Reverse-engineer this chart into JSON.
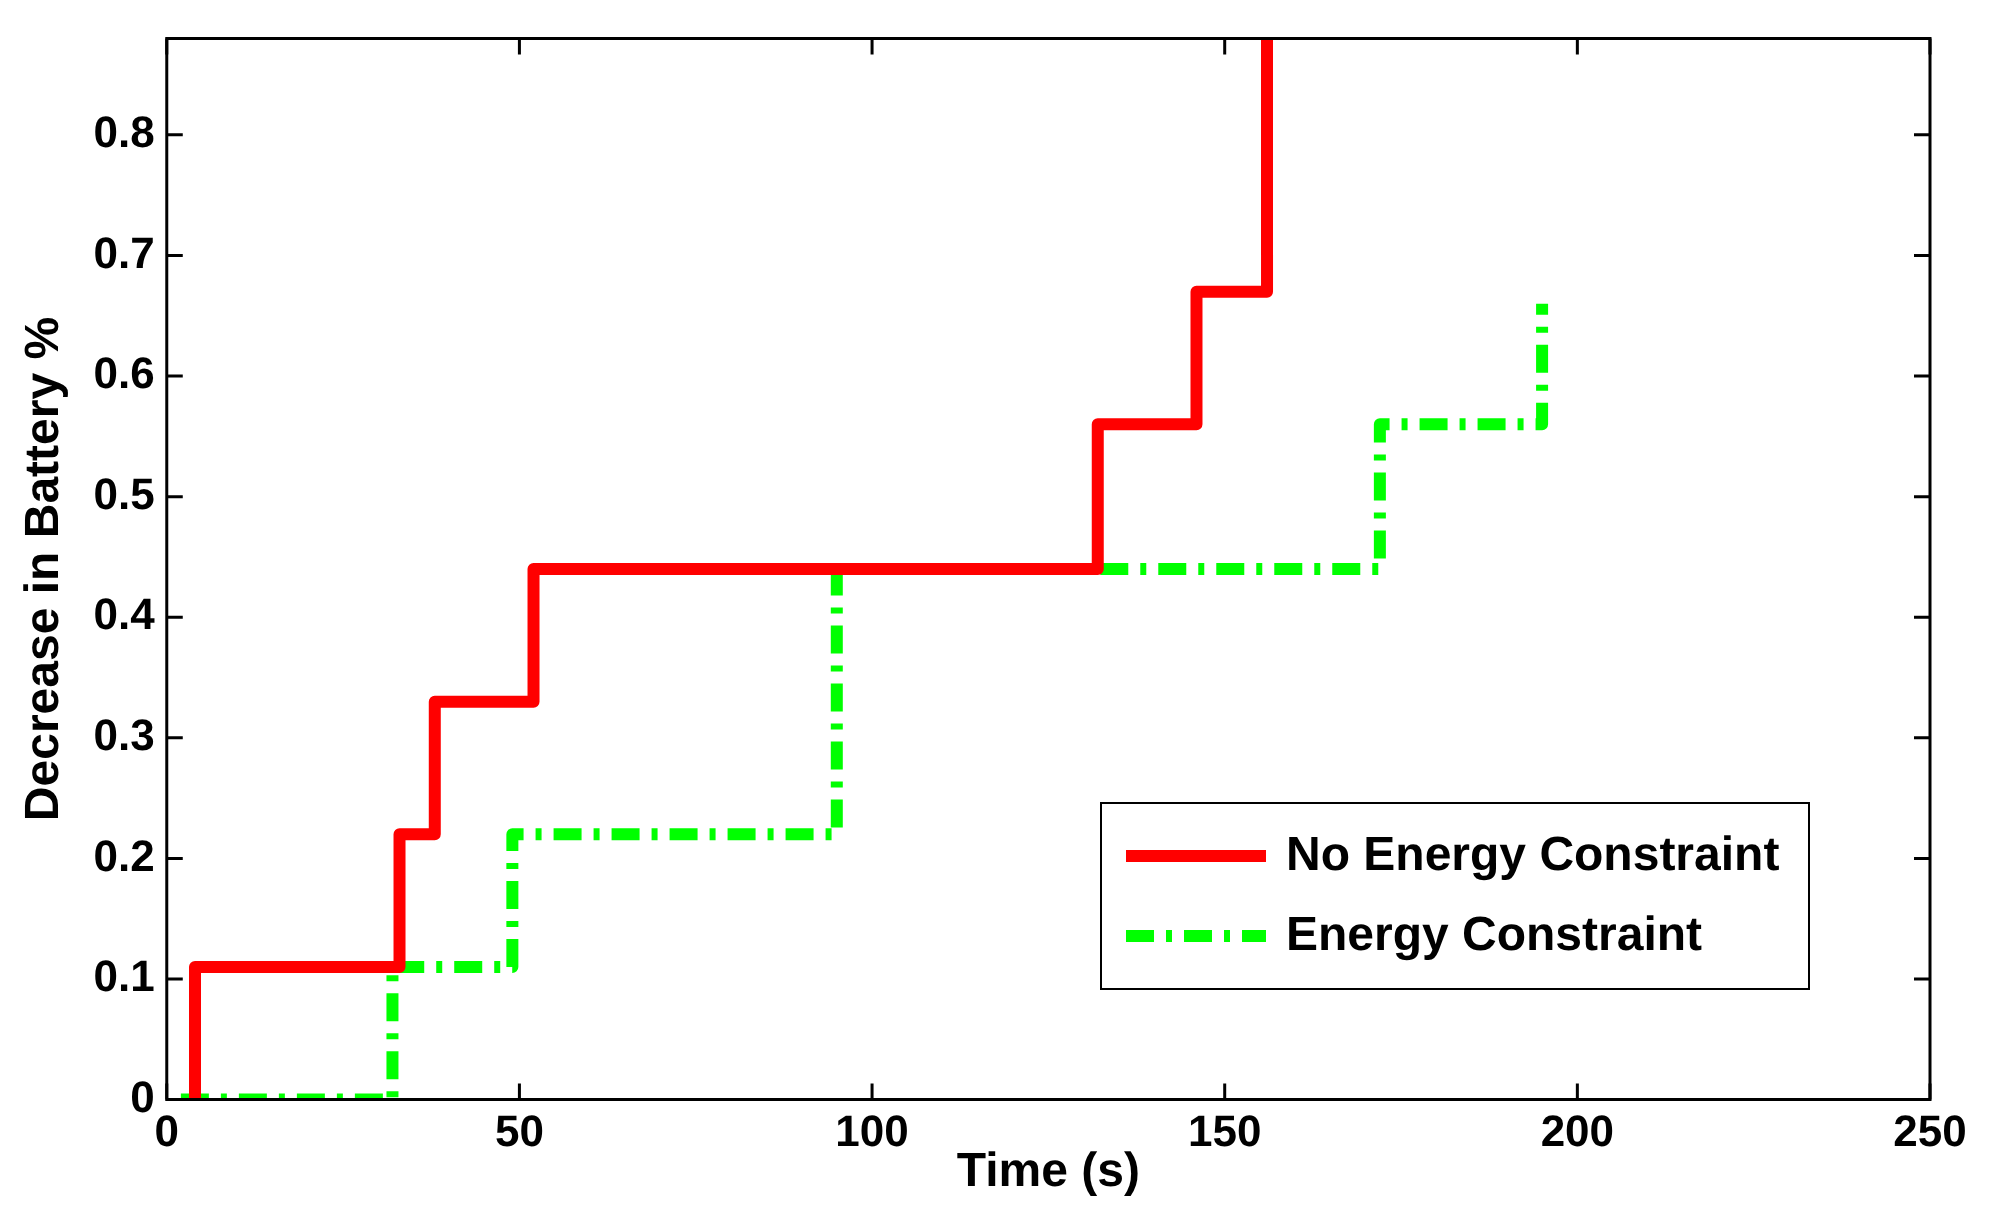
{
  "chart_data": {
    "type": "step",
    "xlabel": "Time (s)",
    "ylabel": "Decrease in Battery %",
    "xlim": [
      0,
      250
    ],
    "xticks": [
      0,
      50,
      100,
      150,
      200,
      250
    ],
    "ylim": [
      0,
      0.88
    ],
    "yticks": [
      0,
      0.1,
      0.2,
      0.3,
      0.4,
      0.5,
      0.6,
      0.7,
      0.8
    ],
    "grid": false,
    "legend": "bottom right",
    "series": [
      {
        "name": "No Energy Constraint",
        "color": "#ff0000",
        "line_style": "solid",
        "x": [
          4,
          4,
          33,
          38,
          52,
          132,
          146,
          156
        ],
        "values": [
          0,
          0.11,
          0.22,
          0.33,
          0.44,
          0.56,
          0.67,
          0.88
        ]
      },
      {
        "name": "Energy Constraint",
        "color": "#00ff00",
        "line_style": "dashed",
        "x": [
          2,
          32,
          49,
          95,
          172,
          195
        ],
        "values": [
          0,
          0.11,
          0.22,
          0.44,
          0.56,
          0.66
        ]
      }
    ]
  }
}
